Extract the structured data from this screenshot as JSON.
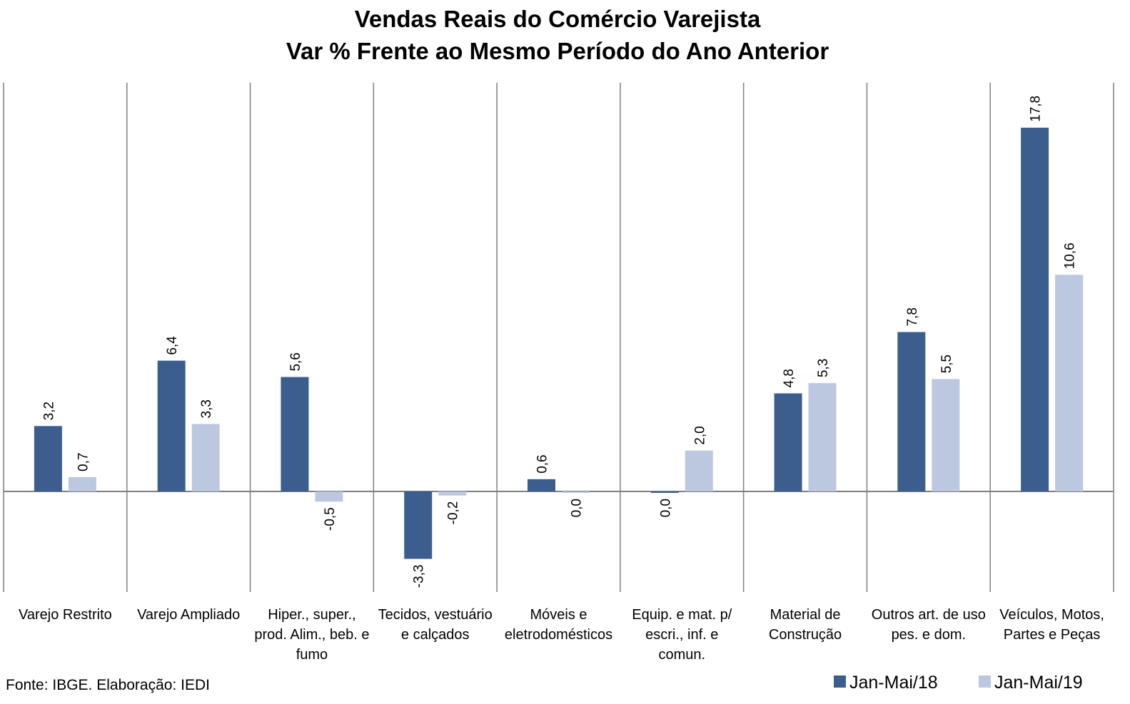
{
  "chart_data": {
    "type": "bar",
    "title": [
      "Vendas Reais do Comércio Varejista",
      "Var % Frente ao Mesmo Período do Ano Anterior"
    ],
    "categories": [
      [
        "Varejo Restrito"
      ],
      [
        "Varejo Ampliado"
      ],
      [
        "Hiper., super.,",
        "prod. Alim., beb. e",
        "fumo"
      ],
      [
        "Tecidos, vestuário",
        "e calçados"
      ],
      [
        "Móveis e",
        "eletrodomésticos"
      ],
      [
        "Equip. e mat. p/",
        "escri., inf. e",
        "comun."
      ],
      [
        "Material de",
        "Construção"
      ],
      [
        "Outros art. de uso",
        "pes. e dom."
      ],
      [
        "Veículos, Motos,",
        "Partes e Peças"
      ]
    ],
    "series": [
      {
        "name": "Jan-Mai/18",
        "color": "#3b5e8f",
        "values": [
          3.2,
          6.4,
          5.6,
          -3.3,
          0.6,
          -0.05,
          4.8,
          7.8,
          17.8
        ],
        "labels": [
          "3,2",
          "6,4",
          "5,6",
          "-3,3",
          "0,6",
          "0,0",
          "4,8",
          "7,8",
          "17,8"
        ]
      },
      {
        "name": "Jan-Mai/19",
        "color": "#bcc8e0",
        "values": [
          0.7,
          3.3,
          -0.5,
          -0.2,
          -0.03,
          2.0,
          5.3,
          5.5,
          10.6
        ],
        "labels": [
          "0,7",
          "3,3",
          "-0,5",
          "-0,2",
          "0,0",
          "2,0",
          "5,3",
          "5,5",
          "10,6"
        ]
      }
    ],
    "ylim": [
      -5,
      20
    ],
    "grid": "vertical category separators",
    "legend": "bottom-right",
    "source": "Fonte: IBGE. Elaboração: IEDI"
  }
}
